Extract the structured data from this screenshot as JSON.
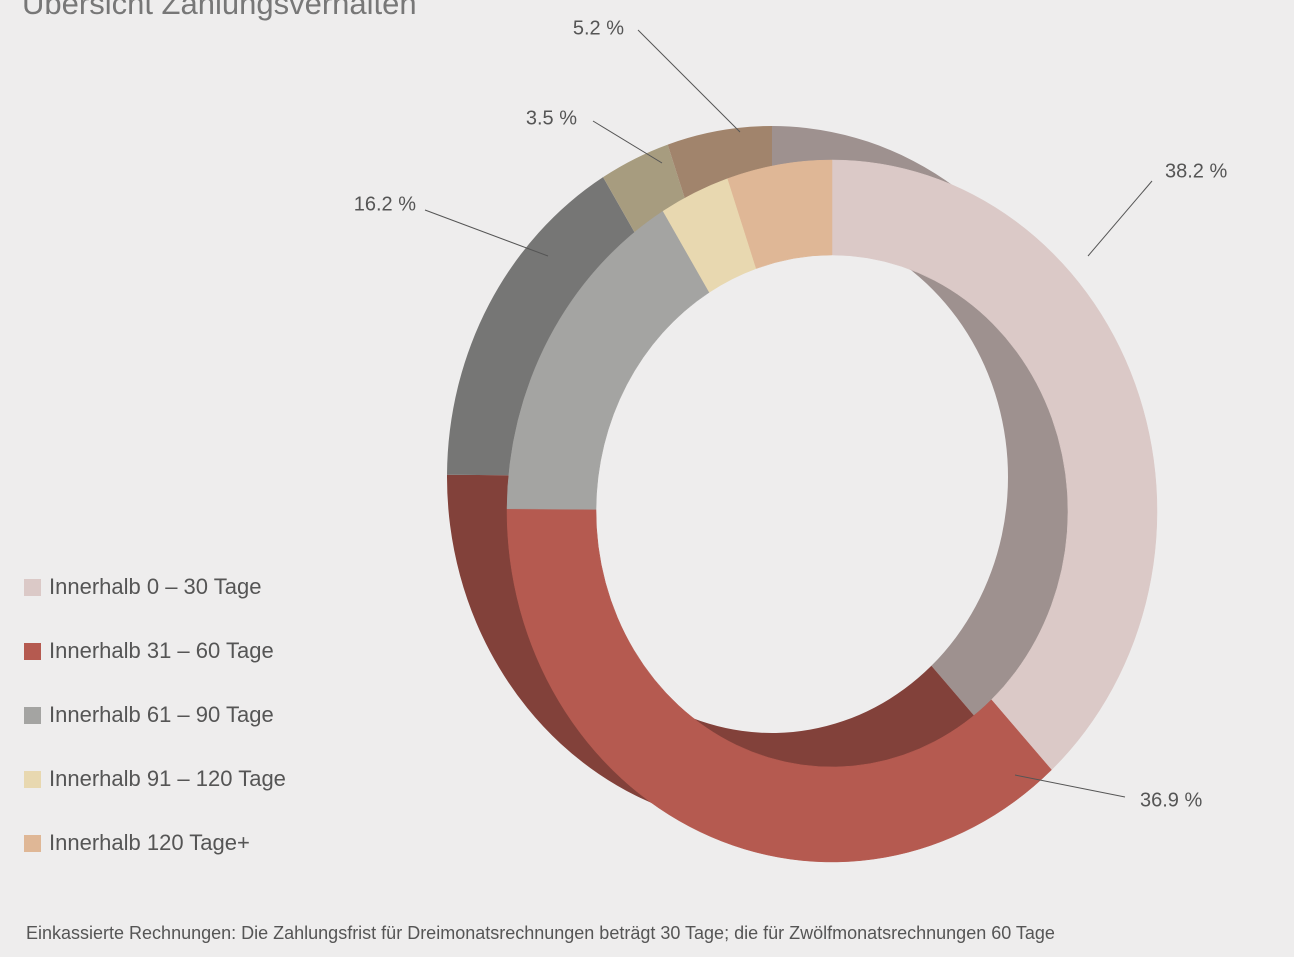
{
  "chart_data": {
    "type": "pie",
    "donut": true,
    "title": "Übersicht Zahlungsverhalten",
    "categories": [
      "Innerhalb 0 – 30 Tage",
      "Innerhalb 31 – 60 Tage",
      "Innerhalb 61 – 90 Tage",
      "Innerhalb 91 – 120 Tage",
      "Innerhalb 120 Tage+"
    ],
    "values": [
      38.2,
      36.9,
      16.2,
      3.5,
      5.2
    ],
    "value_labels": [
      "38.2 %",
      "36.9 %",
      "16.2 %",
      "3.5 %",
      "5.2 %"
    ],
    "colors": [
      "#dbc9c7",
      "#b55a50",
      "#a4a4a2",
      "#e8d8b0",
      "#dfb796"
    ],
    "legend": "left",
    "footnote": "Einkassierte Rechnungen: Die Zahlungsfrist für Dreimonatsrechnungen beträgt 30 Tage; die für Zwölfmonatsrechnungen 60 Tage"
  }
}
